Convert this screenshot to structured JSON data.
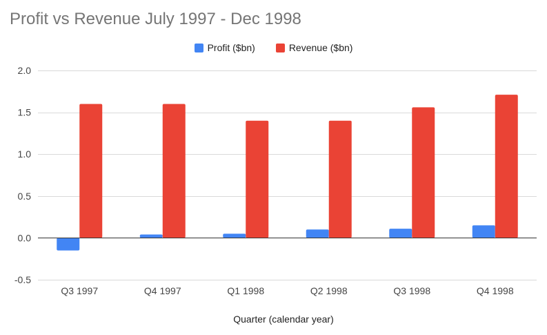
{
  "chart_data": {
    "type": "bar",
    "title": "Profit vs Revenue July 1997 - Dec 1998",
    "xlabel": "Quarter (calendar year)",
    "ylabel": "",
    "categories": [
      "Q3 1997",
      "Q4 1997",
      "Q1 1998",
      "Q2 1998",
      "Q3 1998",
      "Q4 1998"
    ],
    "series": [
      {
        "name": "Profit ($bn)",
        "color": "#4285F4",
        "values": [
          -0.15,
          0.04,
          0.05,
          0.1,
          0.11,
          0.15
        ]
      },
      {
        "name": "Revenue ($bn)",
        "color": "#EA4335",
        "values": [
          1.6,
          1.6,
          1.4,
          1.4,
          1.56,
          1.71
        ]
      }
    ],
    "ylim": [
      -0.5,
      2.0
    ],
    "yticks": [
      "2.0",
      "1.5",
      "1.0",
      "0.5",
      "0.0",
      "-0.5"
    ],
    "grid": true,
    "legend_position": "top-center"
  }
}
